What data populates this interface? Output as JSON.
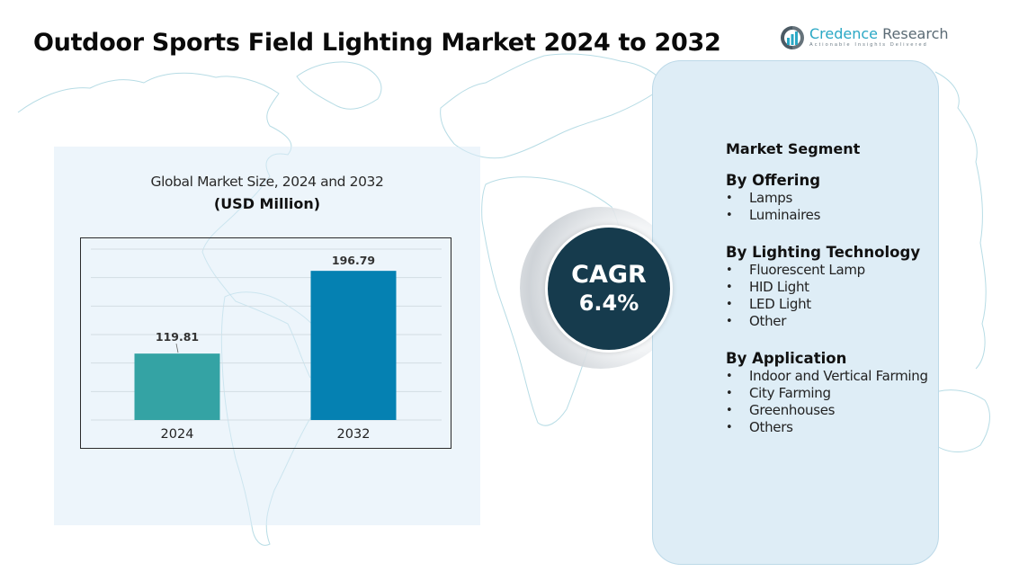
{
  "header": {
    "title": "Outdoor Sports Field Lighting Market 2024 to 2032"
  },
  "logo": {
    "name_part1": "Credence",
    "name_part2": " Research",
    "tagline": "Actionable Insights Delivered",
    "icon": "bar-chart-logo-icon"
  },
  "chart_data": {
    "type": "bar",
    "title": "Global Market Size, 2024 and 2032",
    "subtitle": "(USD Million)",
    "categories": [
      "2024",
      "2032"
    ],
    "values": [
      119.81,
      196.79
    ],
    "value_labels": [
      "119.81",
      "196.79"
    ],
    "colors": [
      "#34a3a4",
      "#0581b2"
    ],
    "xlabel": "",
    "ylabel": "",
    "ylim": [
      58,
      217
    ],
    "grid": true,
    "gridline_count": 7,
    "legend": "none"
  },
  "cagr": {
    "label": "CAGR",
    "value": "6.4%"
  },
  "segments": {
    "title": "Market Segment",
    "groups": [
      {
        "title": "By Offering",
        "items": [
          "Lamps",
          "Luminaires"
        ]
      },
      {
        "title": "By Lighting Technology",
        "items": [
          "Fluorescent Lamp",
          "HID Light",
          "LED Light",
          "Other"
        ]
      },
      {
        "title": "By Application",
        "items": [
          "Indoor and Vertical Farming",
          "City Farming",
          "Greenhouses",
          "Others"
        ]
      }
    ]
  },
  "colors": {
    "accent_dark": "#163b4d",
    "panel_bg": "#deedf6",
    "logo_accent": "#2aa8c5"
  }
}
